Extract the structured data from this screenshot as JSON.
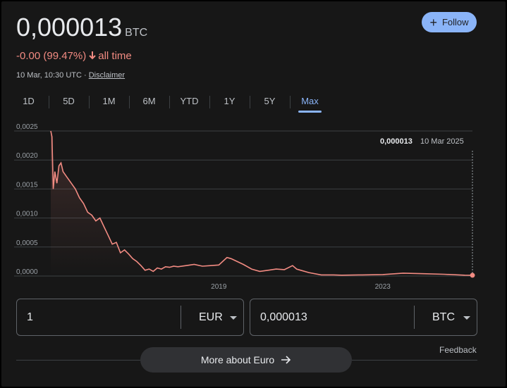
{
  "header": {
    "price": "0,000013",
    "currency": "BTC",
    "follow_label": "Follow"
  },
  "change": {
    "value": "-0.00 (99.47%)",
    "period": "all time"
  },
  "meta": {
    "timestamp": "10 Mar, 10:30 UTC",
    "separator": "·",
    "disclaimer": "Disclaimer"
  },
  "tabs": [
    {
      "label": "1D"
    },
    {
      "label": "5D"
    },
    {
      "label": "1M"
    },
    {
      "label": "6M"
    },
    {
      "label": "YTD"
    },
    {
      "label": "1Y"
    },
    {
      "label": "5Y"
    },
    {
      "label": "Max",
      "active": true
    }
  ],
  "tooltip": {
    "value": "0,000013",
    "date": "10 Mar 2025"
  },
  "chart_data": {
    "type": "area",
    "y_tick_labels": [
      "0,0025",
      "0,0020",
      "0,0015",
      "0,0010",
      "0,0005",
      "0,0000"
    ],
    "y_ticks": [
      0.0025,
      0.002,
      0.0015,
      0.001,
      0.0005,
      0
    ],
    "ylim": [
      0,
      0.0025
    ],
    "x_tick_labels": [
      "2019",
      "2023"
    ],
    "x_ticks": [
      2019.0,
      2023.0
    ],
    "xlim": [
      2014.9,
      2025.19
    ],
    "grid": true,
    "line_color": "#f28b82",
    "x": [
      2014.9,
      2014.93,
      2014.96,
      2015.0,
      2015.05,
      2015.1,
      2015.15,
      2015.2,
      2015.3,
      2015.4,
      2015.5,
      2015.6,
      2015.7,
      2015.8,
      2015.9,
      2016.0,
      2016.1,
      2016.2,
      2016.3,
      2016.4,
      2016.5,
      2016.6,
      2016.7,
      2016.8,
      2016.9,
      2017.0,
      2017.1,
      2017.2,
      2017.3,
      2017.4,
      2017.5,
      2017.6,
      2017.7,
      2017.8,
      2017.9,
      2018.0,
      2018.2,
      2018.4,
      2018.6,
      2018.8,
      2019.0,
      2019.2,
      2019.3,
      2019.45,
      2019.6,
      2019.8,
      2020.0,
      2020.2,
      2020.4,
      2020.6,
      2020.8,
      2020.9,
      2021.0,
      2021.2,
      2021.5,
      2021.8,
      2022.0,
      2022.5,
      2023.0,
      2023.5,
      2024.0,
      2024.5,
      2025.0,
      2025.19
    ],
    "values": [
      0.0025,
      0.0024,
      0.0015,
      0.0018,
      0.0016,
      0.0019,
      0.00195,
      0.0018,
      0.0017,
      0.0016,
      0.0015,
      0.00135,
      0.00125,
      0.0011,
      0.00105,
      0.00095,
      0.001,
      0.00085,
      0.0007,
      0.00055,
      0.00058,
      0.0004,
      0.00045,
      0.00038,
      0.0003,
      0.00025,
      0.00018,
      0.0001,
      0.00012,
      8e-05,
      0.00014,
      0.00012,
      0.00016,
      0.00015,
      0.00017,
      0.00016,
      0.00018,
      0.0002,
      0.00017,
      0.00018,
      0.00019,
      0.00032,
      0.0003,
      0.00025,
      0.0002,
      0.00012,
      8e-05,
      0.0001,
      0.00012,
      0.00011,
      0.00018,
      0.00012,
      0.0001,
      6e-05,
      2e-05,
      2e-05,
      1.5e-05,
      2e-05,
      2.5e-05,
      5e-05,
      4e-05,
      3e-05,
      1.5e-05,
      1.3e-05
    ]
  },
  "converter": {
    "from_value": "1",
    "from_unit": "EUR",
    "to_value": "0,000013",
    "to_unit": "BTC"
  },
  "feedback_label": "Feedback",
  "more_button_label": "More about Euro",
  "colors": {
    "accent": "#8ab4f8",
    "negative": "#f28b82",
    "background": "#171717"
  }
}
